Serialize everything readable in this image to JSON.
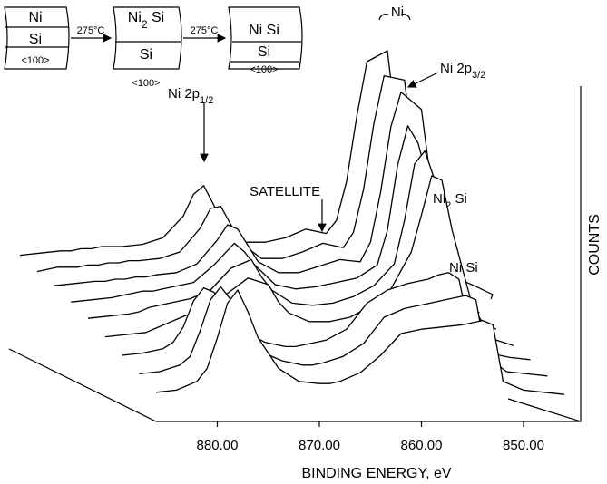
{
  "chart_data": {
    "type": "waterfall",
    "x_label": "BINDING ENERGY, eV",
    "y_label": "COUNTS",
    "x": [
      886,
      884,
      882,
      881,
      880,
      879,
      878,
      877,
      876,
      874,
      872,
      870,
      869,
      868,
      866,
      864,
      862,
      860,
      858,
      856,
      855,
      854,
      853,
      852,
      850,
      848,
      846
    ],
    "xlim": [
      886,
      846
    ],
    "ylim": [
      0,
      100
    ],
    "xticks": [
      {
        "value": 880,
        "label": "880.00"
      },
      {
        "value": 870,
        "label": "870.00"
      },
      {
        "value": 860,
        "label": "860.00"
      },
      {
        "value": 850,
        "label": "850.00"
      }
    ],
    "color": "#000000",
    "series": [
      {
        "values": [
          6,
          7,
          8,
          8,
          9,
          9,
          10,
          10,
          10,
          11,
          14,
          24,
          34,
          38,
          20,
          12,
          12,
          14,
          18,
          16,
          22,
          40,
          70,
          95,
          100,
          20,
          3
        ]
      },
      {
        "values": [
          6,
          8,
          8,
          9,
          9,
          10,
          10,
          11,
          11,
          12,
          15,
          26,
          35,
          36,
          19,
          12,
          12,
          15,
          19,
          17,
          24,
          44,
          74,
          96,
          94,
          18,
          3
        ]
      },
      {
        "values": [
          7,
          8,
          9,
          9,
          10,
          10,
          11,
          11,
          12,
          13,
          17,
          28,
          35,
          33,
          18,
          13,
          13,
          16,
          19,
          18,
          27,
          50,
          80,
          96,
          88,
          16,
          3
        ]
      },
      {
        "values": [
          7,
          8,
          9,
          10,
          11,
          12,
          12,
          13,
          14,
          16,
          24,
          34,
          30,
          24,
          15,
          13,
          14,
          16,
          18,
          24,
          40,
          70,
          88,
          80,
          45,
          10,
          2
        ]
      },
      {
        "values": [
          7,
          8,
          9,
          10,
          12,
          13,
          14,
          15,
          16,
          20,
          30,
          34,
          26,
          20,
          14,
          13,
          14,
          17,
          22,
          32,
          52,
          78,
          84,
          70,
          30,
          6,
          2
        ]
      },
      {
        "values": [
          6,
          7,
          8,
          10,
          12,
          14,
          16,
          18,
          20,
          26,
          33,
          30,
          22,
          17,
          13,
          13,
          15,
          20,
          28,
          45,
          62,
          80,
          78,
          55,
          20,
          5,
          2
        ]
      },
      {
        "values": [
          5,
          6,
          8,
          11,
          18,
          30,
          36,
          34,
          26,
          16,
          11,
          9,
          9,
          10,
          12,
          17,
          29,
          35,
          38,
          40,
          42,
          43,
          40,
          18,
          6,
          4,
          3
        ]
      },
      {
        "values": [
          4,
          5,
          8,
          12,
          24,
          38,
          44,
          38,
          26,
          14,
          10,
          8,
          8,
          9,
          12,
          18,
          30,
          34,
          36,
          38,
          39,
          40,
          38,
          12,
          5,
          4,
          3
        ]
      },
      {
        "values": [
          3,
          4,
          8,
          14,
          28,
          44,
          50,
          40,
          28,
          14,
          8,
          7,
          7,
          8,
          12,
          20,
          30,
          32,
          33,
          34,
          35,
          36,
          34,
          8,
          4,
          3,
          2
        ]
      }
    ],
    "annotations": [
      {
        "text": "Ni"
      },
      {
        "text": "Ni 2p",
        "sub": "3/2"
      },
      {
        "text": "Ni 2p",
        "sub": "1/2"
      },
      {
        "text": "SATELLITE"
      },
      {
        "text": "Nl",
        "sub": "2",
        "tail": " Si"
      },
      {
        "text": "Ni Si"
      }
    ]
  },
  "inset": {
    "stages": [
      {
        "layer": {
          "text": "Ni"
        },
        "substrate": "Si",
        "orientation": "<100>"
      },
      {
        "layer": {
          "text": "Ni",
          "sub": "2",
          "tail": " Si"
        },
        "substrate": "Si",
        "orientation": "<100>"
      },
      {
        "layer": {
          "text": "Ni Si"
        },
        "substrate": "Si",
        "orientation": "<100>"
      }
    ],
    "anneal": [
      "275°C",
      "275°C"
    ]
  }
}
